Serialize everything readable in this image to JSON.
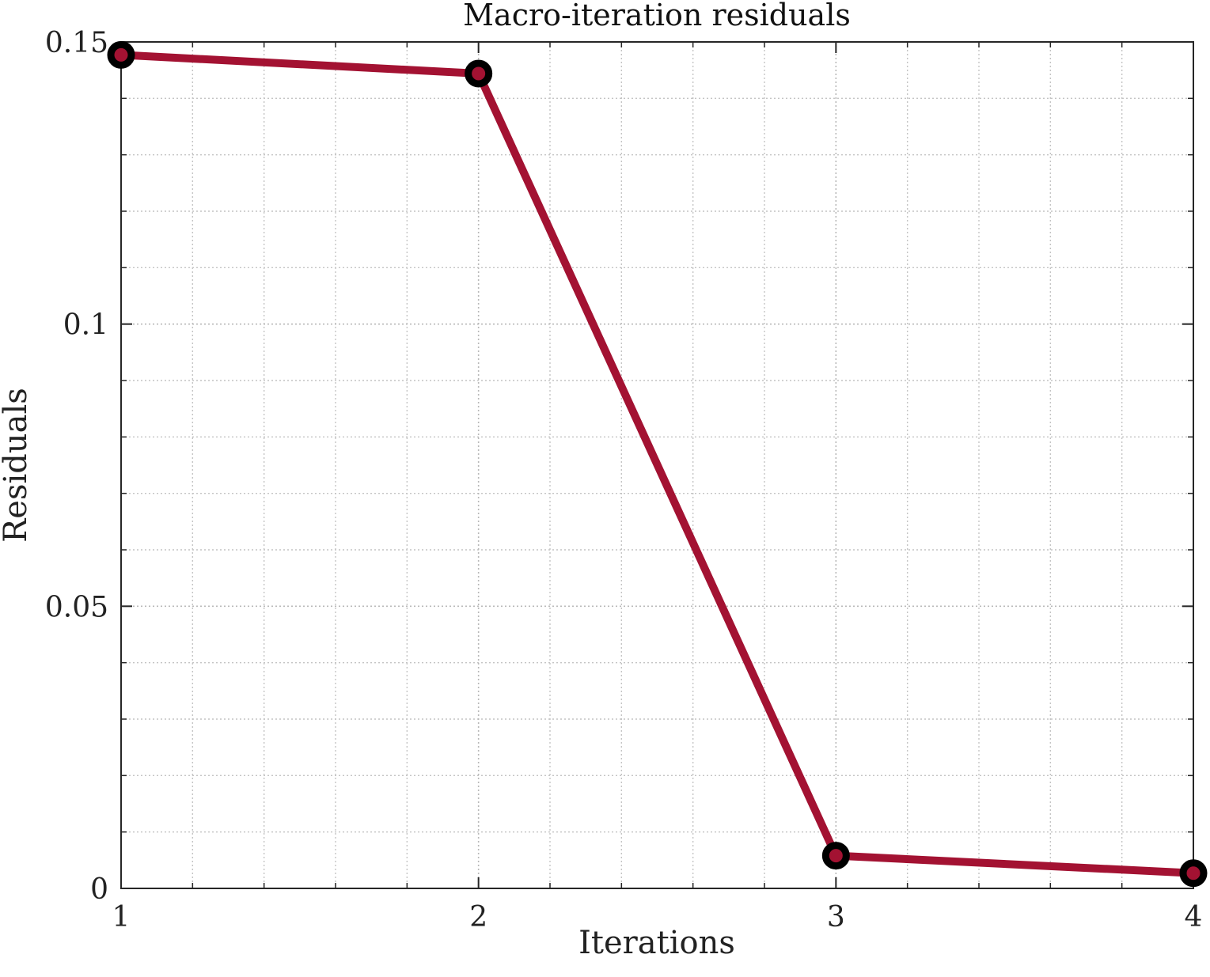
{
  "chart_data": {
    "type": "line",
    "title": "Macro-iteration residuals",
    "xlabel": "Iterations",
    "ylabel": "Residuals",
    "x": [
      1,
      2,
      3,
      4
    ],
    "xticks": [
      "1",
      "2",
      "3",
      "4"
    ],
    "yticks": [
      "0",
      "0.05",
      "0.1",
      "0.15"
    ],
    "xlim": [
      1,
      4
    ],
    "ylim": [
      0,
      0.15
    ],
    "series": [
      {
        "values": [
          0.1477,
          0.1444,
          0.0058,
          0.0027
        ],
        "color": "#a31232"
      }
    ],
    "marker_color": "#000000",
    "grid": true,
    "minor_grid": true,
    "legend": "none"
  }
}
